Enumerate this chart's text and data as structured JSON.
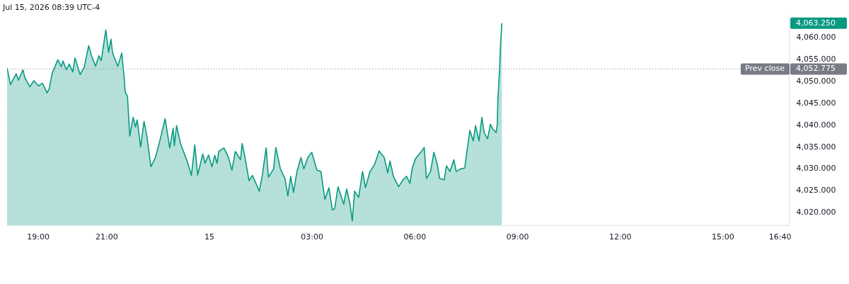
{
  "chart_data": {
    "type": "area",
    "title": "Jul 15, 2026 08:39 UTC-4",
    "x": [
      "2026-07-14T18:06",
      "2026-07-14T18:12",
      "2026-07-14T18:22",
      "2026-07-14T18:26",
      "2026-07-14T18:34",
      "2026-07-14T18:37",
      "2026-07-14T18:46",
      "2026-07-14T18:53",
      "2026-07-14T19:01",
      "2026-07-14T19:08",
      "2026-07-14T19:16",
      "2026-07-14T19:20",
      "2026-07-14T19:25",
      "2026-07-14T19:35",
      "2026-07-14T19:41",
      "2026-07-14T19:44",
      "2026-07-14T19:50",
      "2026-07-14T19:55",
      "2026-07-14T20:01",
      "2026-07-14T20:05",
      "2026-07-14T20:14",
      "2026-07-14T20:21",
      "2026-07-14T20:29",
      "2026-07-14T20:34",
      "2026-07-14T20:41",
      "2026-07-14T20:47",
      "2026-07-14T20:51",
      "2026-07-14T20:59",
      "2026-07-14T21:04",
      "2026-07-14T21:08",
      "2026-07-14T21:11",
      "2026-07-14T21:20",
      "2026-07-14T21:27",
      "2026-07-14T21:31",
      "2026-07-14T21:33",
      "2026-07-14T21:37",
      "2026-07-14T21:41",
      "2026-07-14T21:47",
      "2026-07-14T21:51",
      "2026-07-14T21:54",
      "2026-07-14T22:00",
      "2026-07-14T22:06",
      "2026-07-14T22:11",
      "2026-07-14T22:18",
      "2026-07-14T22:26",
      "2026-07-14T22:34",
      "2026-07-14T22:43",
      "2026-07-14T22:51",
      "2026-07-14T22:57",
      "2026-07-14T22:59",
      "2026-07-14T23:03",
      "2026-07-14T23:10",
      "2026-07-14T23:22",
      "2026-07-14T23:29",
      "2026-07-14T23:35",
      "2026-07-14T23:40",
      "2026-07-14T23:49",
      "2026-07-14T23:53",
      "2026-07-14T23:59",
      "2026-07-15T00:05",
      "2026-07-15T00:10",
      "2026-07-15T00:14",
      "2026-07-15T00:17",
      "2026-07-15T00:26",
      "2026-07-15T00:34",
      "2026-07-15T00:40",
      "2026-07-15T00:46",
      "2026-07-15T00:55",
      "2026-07-15T00:58",
      "2026-07-15T01:03",
      "2026-07-15T01:10",
      "2026-07-15T01:16",
      "2026-07-15T01:28",
      "2026-07-15T01:33",
      "2026-07-15T01:40",
      "2026-07-15T01:44",
      "2026-07-15T01:53",
      "2026-07-15T01:57",
      "2026-07-15T02:05",
      "2026-07-15T02:13",
      "2026-07-15T02:18",
      "2026-07-15T02:23",
      "2026-07-15T02:28",
      "2026-07-15T02:34",
      "2026-07-15T02:41",
      "2026-07-15T02:46",
      "2026-07-15T02:53",
      "2026-07-15T03:00",
      "2026-07-15T03:09",
      "2026-07-15T03:16",
      "2026-07-15T03:23",
      "2026-07-15T03:30",
      "2026-07-15T03:36",
      "2026-07-15T03:40",
      "2026-07-15T03:46",
      "2026-07-15T03:56",
      "2026-07-15T04:01",
      "2026-07-15T04:07",
      "2026-07-15T04:11",
      "2026-07-15T04:15",
      "2026-07-15T04:22",
      "2026-07-15T04:29",
      "2026-07-15T04:34",
      "2026-07-15T04:42",
      "2026-07-15T04:50",
      "2026-07-15T04:58",
      "2026-07-15T05:07",
      "2026-07-15T05:13",
      "2026-07-15T05:17",
      "2026-07-15T05:23",
      "2026-07-15T05:32",
      "2026-07-15T05:40",
      "2026-07-15T05:46",
      "2026-07-15T05:52",
      "2026-07-15T05:56",
      "2026-07-15T06:02",
      "2026-07-15T06:11",
      "2026-07-15T06:17",
      "2026-07-15T06:21",
      "2026-07-15T06:28",
      "2026-07-15T06:34",
      "2026-07-15T06:40",
      "2026-07-15T06:44",
      "2026-07-15T06:52",
      "2026-07-15T06:56",
      "2026-07-15T07:02",
      "2026-07-15T07:09",
      "2026-07-15T07:13",
      "2026-07-15T07:21",
      "2026-07-15T07:28",
      "2026-07-15T07:31",
      "2026-07-15T07:37",
      "2026-07-15T07:43",
      "2026-07-15T07:47",
      "2026-07-15T07:53",
      "2026-07-15T07:58",
      "2026-07-15T08:02",
      "2026-07-15T08:08",
      "2026-07-15T08:13",
      "2026-07-15T08:17",
      "2026-07-15T08:23",
      "2026-07-15T08:25",
      "2026-07-15T08:26",
      "2026-07-15T08:29",
      "2026-07-15T08:31",
      "2026-07-15T08:33"
    ],
    "series": [
      {
        "color": "#089981",
        "values": [
          4053.0,
          4049.2,
          4051.7,
          4050.2,
          4052.6,
          4050.8,
          4048.7,
          4050.1,
          4048.9,
          4049.5,
          4047.3,
          4048.3,
          4051.8,
          4054.9,
          4053.3,
          4054.6,
          4052.6,
          4053.9,
          4052.1,
          4055.3,
          4051.5,
          4053.1,
          4058.1,
          4055.8,
          4053.4,
          4055.8,
          4054.7,
          4061.7,
          4056.6,
          4059.6,
          4056.4,
          4053.4,
          4056.4,
          4051.0,
          4047.5,
          4046.5,
          4037.4,
          4041.7,
          4039.5,
          4041.1,
          4034.9,
          4040.8,
          4037.4,
          4030.4,
          4032.5,
          4036.5,
          4041.4,
          4034.7,
          4039.2,
          4035.2,
          4039.8,
          4035.7,
          4031.5,
          4028.4,
          4035.4,
          4028.5,
          4033.3,
          4031.2,
          4033.1,
          4030.4,
          4033.0,
          4031.2,
          4033.9,
          4034.7,
          4032.5,
          4029.6,
          4033.9,
          4032.0,
          4035.7,
          4032.5,
          4027.2,
          4028.4,
          4024.8,
          4028.2,
          4034.7,
          4028.0,
          4029.9,
          4034.8,
          4029.9,
          4027.7,
          4023.7,
          4028.2,
          4024.5,
          4029.3,
          4032.5,
          4029.9,
          4032.5,
          4033.7,
          4029.6,
          4029.3,
          4022.9,
          4025.6,
          4020.5,
          4020.8,
          4025.8,
          4021.8,
          4025.3,
          4021.8,
          4018.0,
          4024.8,
          4023.4,
          4029.3,
          4025.6,
          4029.3,
          4030.9,
          4034.0,
          4032.5,
          4029.0,
          4031.7,
          4028.2,
          4025.8,
          4027.4,
          4028.2,
          4026.6,
          4030.1,
          4032.3,
          4033.7,
          4034.8,
          4027.7,
          4029.3,
          4033.7,
          4030.9,
          4027.7,
          4027.4,
          4030.6,
          4029.3,
          4032.0,
          4029.3,
          4029.9,
          4030.1,
          4033.1,
          4038.7,
          4036.3,
          4039.8,
          4036.3,
          4041.7,
          4038.2,
          4036.8,
          4040.1,
          4039.1,
          4038.2,
          4040.0,
          4045.4,
          4052.6,
          4059.0,
          4063.25
        ]
      }
    ],
    "xlim": [
      "2026-07-14T18:06",
      "2026-07-15T16:56"
    ],
    "xticks": [
      {
        "value": "2026-07-14T19:00",
        "label": "19:00"
      },
      {
        "value": "2026-07-14T21:00",
        "label": "21:00"
      },
      {
        "value": "2026-07-15T00:00",
        "label": "15"
      },
      {
        "value": "2026-07-15T03:00",
        "label": "03:00"
      },
      {
        "value": "2026-07-15T06:00",
        "label": "06:00"
      },
      {
        "value": "2026-07-15T09:00",
        "label": "09:00"
      },
      {
        "value": "2026-07-15T12:00",
        "label": "12:00"
      },
      {
        "value": "2026-07-15T15:00",
        "label": "15:00"
      },
      {
        "value": "2026-07-15T16:40",
        "label": "16:40"
      }
    ],
    "ylim": [
      4017,
      4065
    ],
    "yticks": [
      {
        "value": 4020,
        "label": "4,020.000"
      },
      {
        "value": 4025,
        "label": "4,025.000"
      },
      {
        "value": 4030,
        "label": "4,030.000"
      },
      {
        "value": 4035,
        "label": "4,035.000"
      },
      {
        "value": 4040,
        "label": "4,040.000"
      },
      {
        "value": 4045,
        "label": "4,045.000"
      },
      {
        "value": 4050,
        "label": "4,050.000"
      },
      {
        "value": 4055,
        "label": "4,055.000"
      },
      {
        "value": 4060,
        "label": "4,060.000"
      }
    ],
    "ref_lines": [
      {
        "axis": "y",
        "value": 4052.775,
        "label": "Prev close",
        "color": "#787b86",
        "line_style": "dotted"
      }
    ],
    "annotations": [
      "4,063.250",
      "4,052.775"
    ]
  }
}
